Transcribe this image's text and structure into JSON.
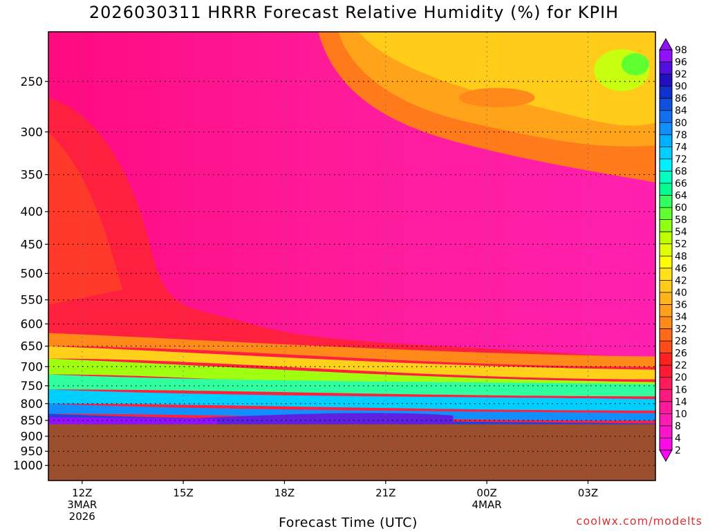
{
  "chart_data": {
    "type": "heatmap",
    "title": "2026030311 HRRR Forecast Relative Humidity (%) for KPIH",
    "xlabel": "Forecast Time (UTC)",
    "ylabel": "",
    "y_ticks": [
      250,
      300,
      350,
      400,
      450,
      500,
      550,
      600,
      650,
      700,
      750,
      800,
      850,
      900,
      950,
      1000
    ],
    "x_ticks": [
      {
        "label": "12Z",
        "sub": [
          "3MAR",
          "2026"
        ],
        "hour": 0
      },
      {
        "label": "15Z",
        "sub": [],
        "hour": 3
      },
      {
        "label": "18Z",
        "sub": [],
        "hour": 6
      },
      {
        "label": "21Z",
        "sub": [],
        "hour": 9
      },
      {
        "label": "00Z",
        "sub": [
          "4MAR"
        ],
        "hour": 12
      },
      {
        "label": "03Z",
        "sub": [],
        "hour": 15
      }
    ],
    "x_range_hours": [
      -1,
      17
    ],
    "colorbar_levels": [
      2,
      4,
      8,
      10,
      14,
      16,
      20,
      22,
      26,
      28,
      32,
      34,
      36,
      40,
      42,
      46,
      48,
      52,
      54,
      58,
      60,
      64,
      66,
      68,
      72,
      74,
      78,
      80,
      84,
      86,
      90,
      92,
      96,
      98
    ],
    "colorbar_colors": [
      "#ff00ff",
      "#ff0ae6",
      "#ff14cc",
      "#ff1ab3",
      "#ff1a99",
      "#ff1a80",
      "#ff1a5a",
      "#ff1a33",
      "#ff2020",
      "#ff4a1a",
      "#ff6a1a",
      "#ff8a1a",
      "#ffa01a",
      "#ffb41a",
      "#ffca1a",
      "#ffe01a",
      "#ffff00",
      "#e0ff00",
      "#c0ff00",
      "#90ff10",
      "#60ff30",
      "#30ff60",
      "#00ff90",
      "#00ffc0",
      "#00f0ff",
      "#00d0ff",
      "#00b0ff",
      "#1090ff",
      "#1070f0",
      "#1050e0",
      "#1030d0",
      "#2010c0",
      "#5010e0",
      "#9010ff"
    ],
    "surface_pressure": 862,
    "terrain_color": "#9b4f2e"
  },
  "credit": "coolwx.com/modelts"
}
